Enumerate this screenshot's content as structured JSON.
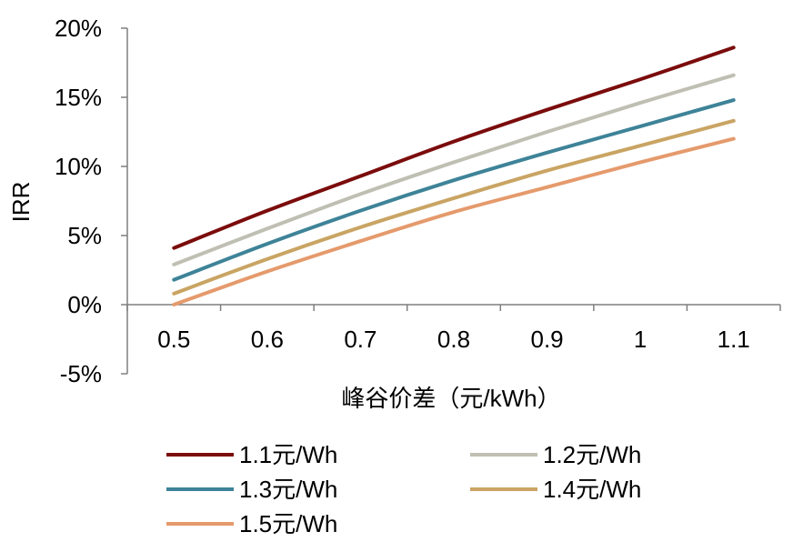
{
  "chart_data": {
    "type": "line",
    "title": "",
    "xlabel": "峰谷价差（元/kWh）",
    "ylabel": "IRR",
    "x": [
      0.5,
      0.6,
      0.7,
      0.8,
      0.9,
      1.0,
      1.1
    ],
    "x_tick_labels": [
      "0.5",
      "0.6",
      "0.7",
      "0.8",
      "0.9",
      "1",
      "1.1"
    ],
    "y_ticks": [
      -5,
      0,
      5,
      10,
      15,
      20
    ],
    "y_tick_labels": [
      "-5%",
      "0%",
      "5%",
      "10%",
      "15%",
      "20%"
    ],
    "ylim": [
      -5,
      20
    ],
    "legend_position": "bottom",
    "series": [
      {
        "name": "1.1元/Wh",
        "color": "#7b0c0c",
        "values": [
          4.1,
          6.8,
          9.3,
          11.8,
          14.1,
          16.3,
          18.6
        ]
      },
      {
        "name": "1.2元/Wh",
        "color": "#bfbfb3",
        "values": [
          2.9,
          5.5,
          8.0,
          10.3,
          12.5,
          14.6,
          16.6
        ]
      },
      {
        "name": "1.3元/Wh",
        "color": "#3e8398",
        "values": [
          1.8,
          4.4,
          6.8,
          9.0,
          11.0,
          12.9,
          14.8
        ]
      },
      {
        "name": "1.4元/Wh",
        "color": "#c9a463",
        "values": [
          0.8,
          3.3,
          5.6,
          7.7,
          9.7,
          11.5,
          13.3
        ]
      },
      {
        "name": "1.5元/Wh",
        "color": "#e59a6c",
        "values": [
          0.0,
          2.4,
          4.6,
          6.7,
          8.5,
          10.3,
          12.0
        ]
      }
    ]
  }
}
